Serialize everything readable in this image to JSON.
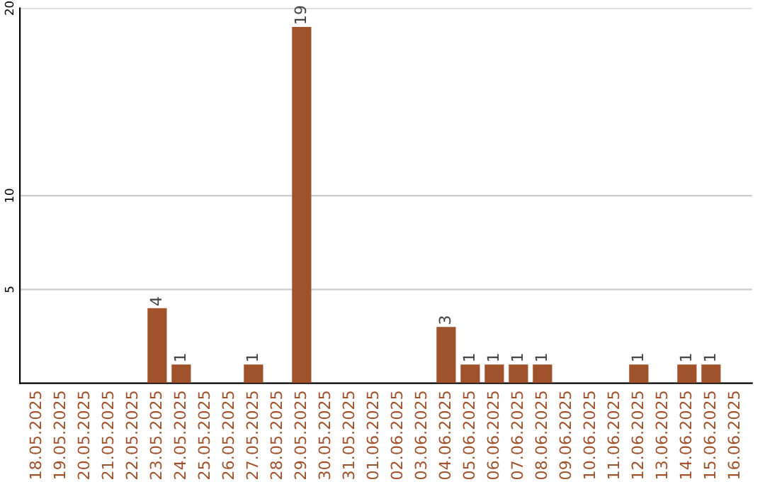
{
  "chart_data": {
    "type": "bar",
    "categories": [
      "18.05.2025",
      "19.05.2025",
      "20.05.2025",
      "21.05.2025",
      "22.05.2025",
      "23.05.2025",
      "24.05.2025",
      "25.05.2025",
      "26.05.2025",
      "27.05.2025",
      "28.05.2025",
      "29.05.2025",
      "30.05.2025",
      "31.05.2025",
      "01.06.2025",
      "02.06.2025",
      "03.06.2025",
      "04.06.2025",
      "05.06.2025",
      "06.06.2025",
      "07.06.2025",
      "08.06.2025",
      "09.06.2025",
      "10.06.2025",
      "11.06.2025",
      "12.06.2025",
      "13.06.2025",
      "14.06.2025",
      "15.06.2025",
      "16.06.2025"
    ],
    "values": [
      0,
      0,
      0,
      0,
      0,
      4,
      1,
      0,
      0,
      1,
      0,
      19,
      0,
      0,
      0,
      0,
      0,
      3,
      1,
      1,
      1,
      1,
      0,
      0,
      0,
      1,
      0,
      1,
      1,
      0
    ],
    "value_labels": [
      null,
      null,
      null,
      null,
      null,
      "4",
      "1",
      null,
      null,
      "1",
      null,
      "19",
      null,
      null,
      null,
      null,
      null,
      "3",
      "1",
      "1",
      "1",
      "1",
      null,
      null,
      null,
      "1",
      null,
      "1",
      "1",
      null
    ],
    "color": "#a0522d",
    "ylim": [
      0,
      20
    ],
    "yticks": [
      5,
      10,
      20
    ],
    "grid": "y"
  }
}
